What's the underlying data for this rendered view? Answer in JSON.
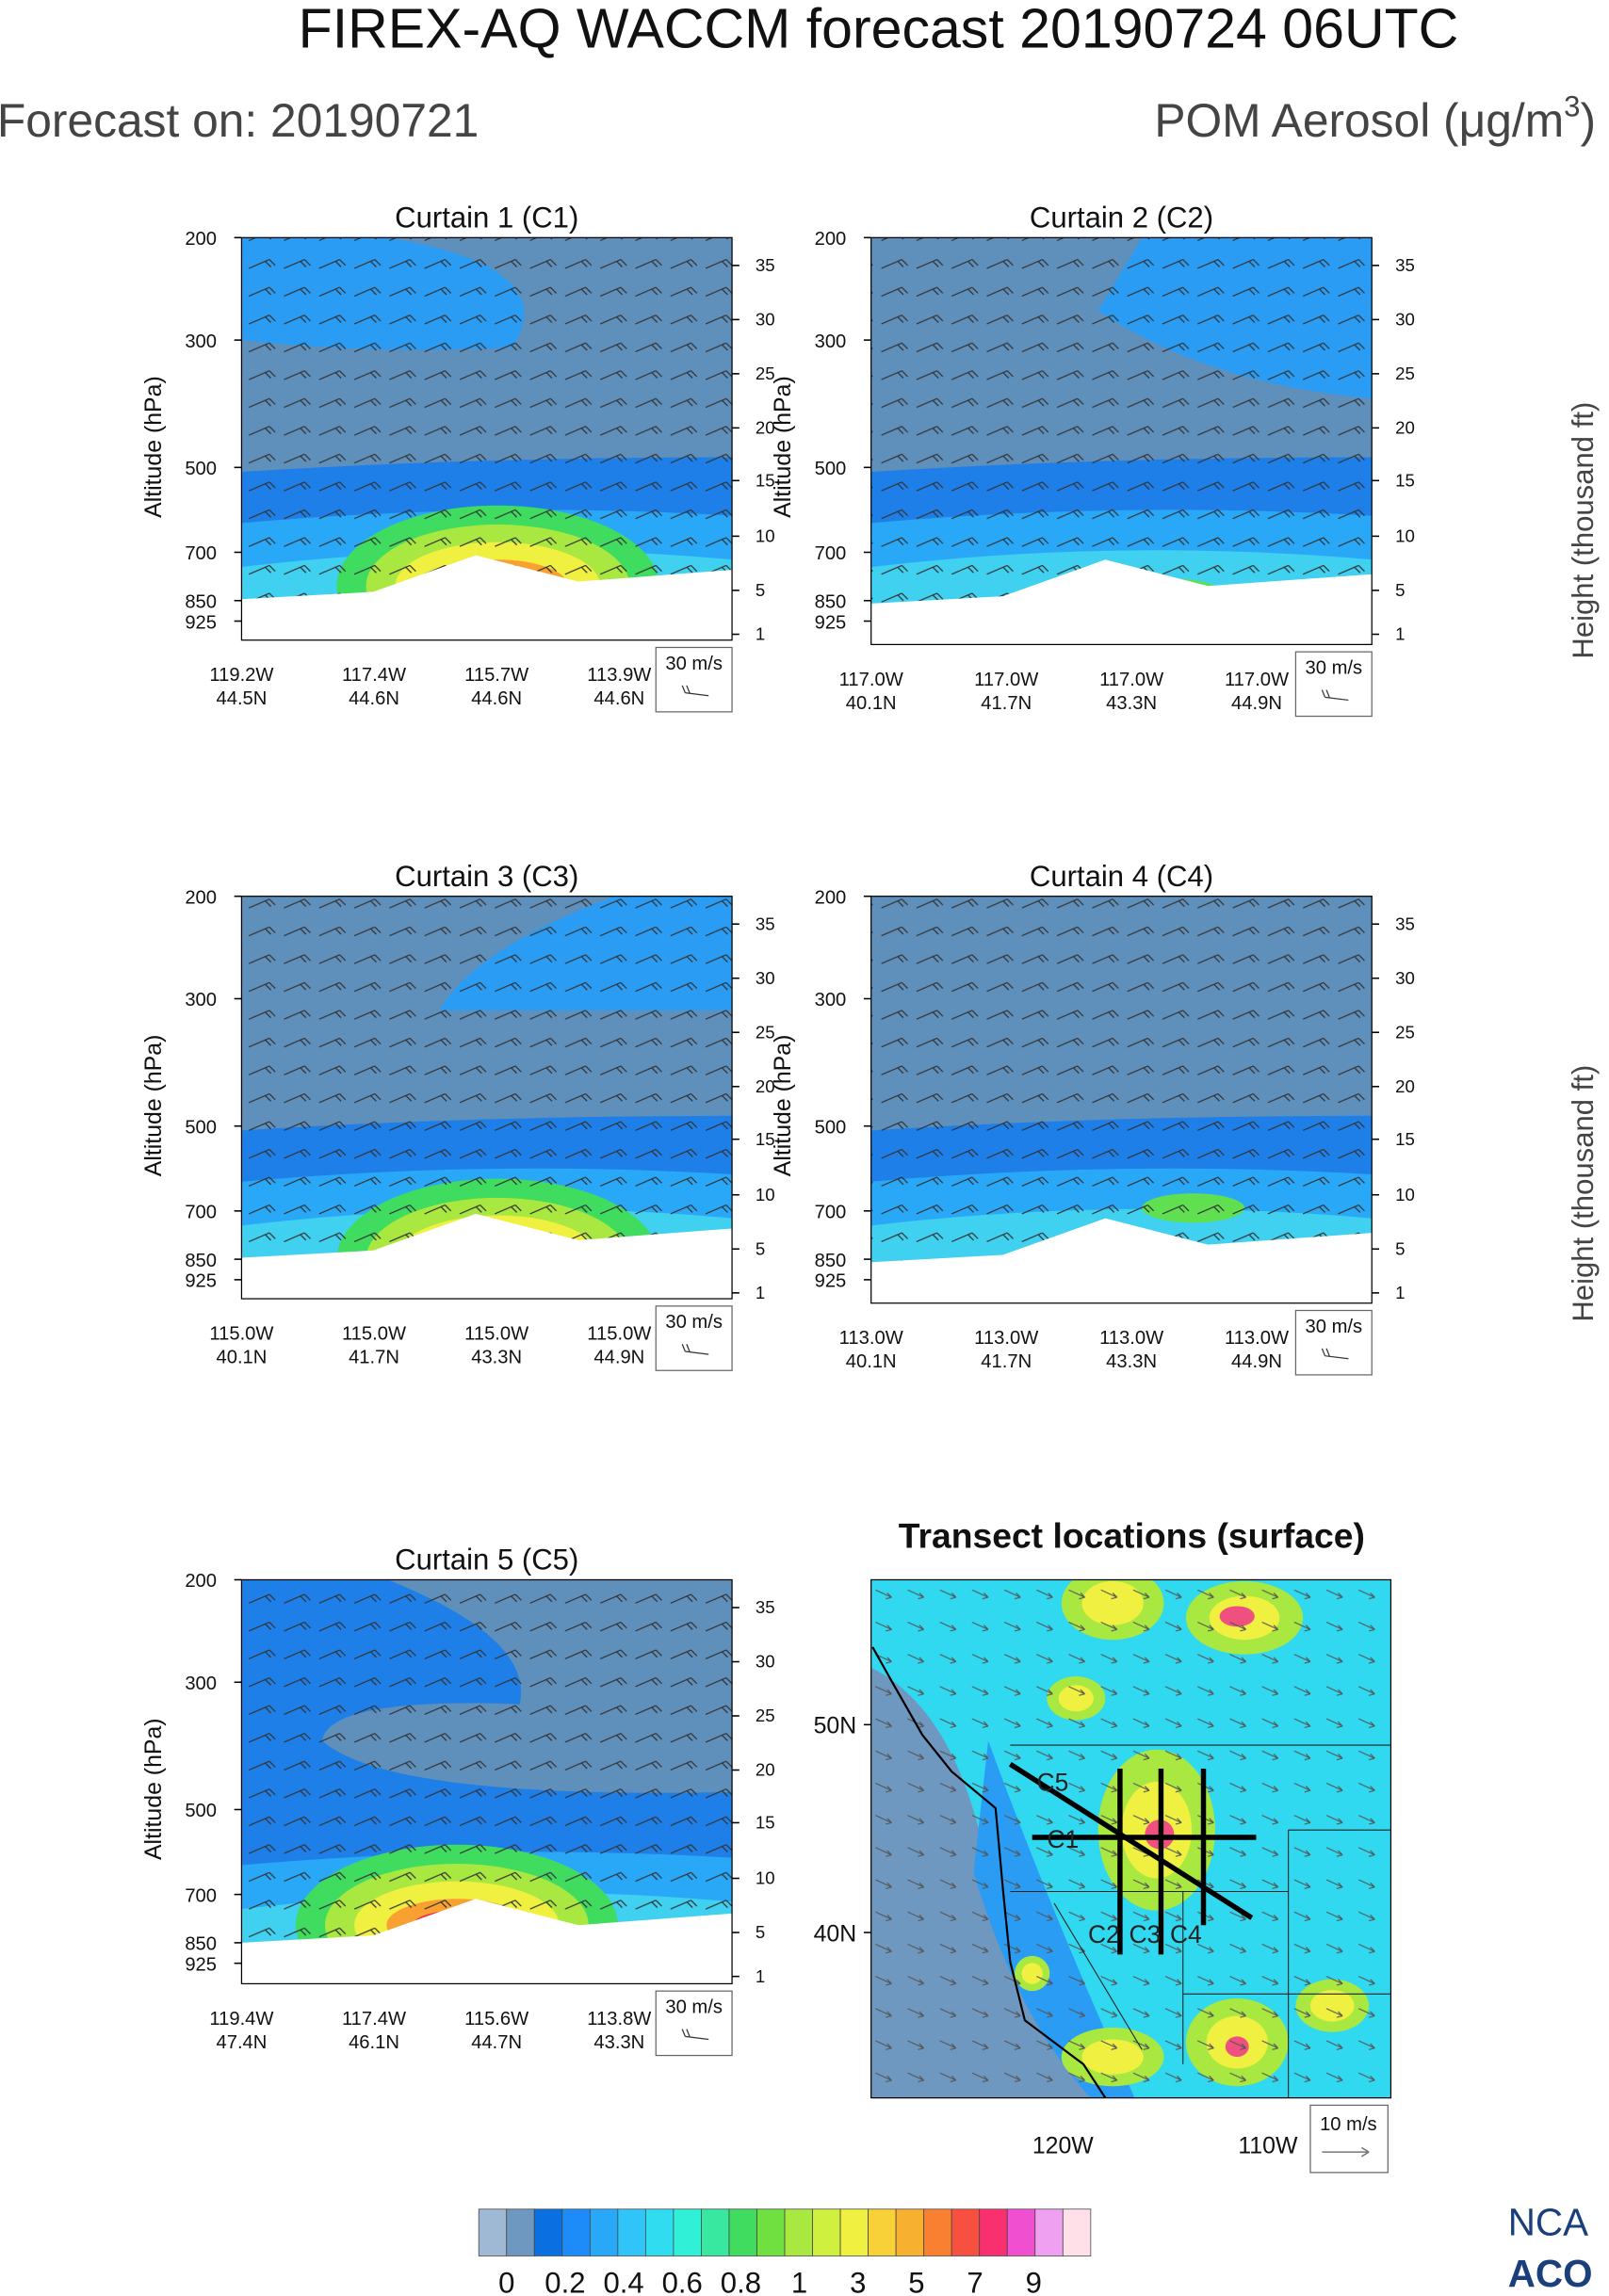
{
  "header": {
    "title": "FIREX-AQ WACCM forecast 20190724 06UTC",
    "forecast_on": "Forecast on: 20190721",
    "variable": "POM Aerosol (μg/m",
    "variable_sup": "3",
    "variable_end": ")"
  },
  "y_axis_label": "Altitude (hPa)",
  "right_axis_labels": [
    "Height (thousand ft)",
    "Height (thousand ft)"
  ],
  "panels": [
    {
      "title": "Curtain 1 (C1)",
      "yticks": [
        "200",
        "300",
        "500",
        "700",
        "850",
        "925"
      ],
      "right_ticks": [
        "35",
        "30",
        "25",
        "20",
        "15",
        "10",
        "5",
        "1"
      ],
      "wind_key": "30 m/s",
      "x_labels": [
        {
          "lon": "119.2W",
          "lat": "44.5N"
        },
        {
          "lon": "117.4W",
          "lat": "44.6N"
        },
        {
          "lon": "115.7W",
          "lat": "44.6N"
        },
        {
          "lon": "113.9W",
          "lat": "44.6N"
        }
      ]
    },
    {
      "title": "Curtain 2 (C2)",
      "yticks": [
        "200",
        "300",
        "500",
        "700",
        "850",
        "925"
      ],
      "right_ticks": [
        "35",
        "30",
        "25",
        "20",
        "15",
        "10",
        "5",
        "1"
      ],
      "wind_key": "30 m/s",
      "x_labels": [
        {
          "lon": "117.0W",
          "lat": "40.1N"
        },
        {
          "lon": "117.0W",
          "lat": "41.7N"
        },
        {
          "lon": "117.0W",
          "lat": "43.3N"
        },
        {
          "lon": "117.0W",
          "lat": "44.9N"
        }
      ]
    },
    {
      "title": "Curtain 3 (C3)",
      "yticks": [
        "200",
        "300",
        "500",
        "700",
        "850",
        "925"
      ],
      "right_ticks": [
        "35",
        "30",
        "25",
        "20",
        "15",
        "10",
        "5",
        "1"
      ],
      "wind_key": "30 m/s",
      "x_labels": [
        {
          "lon": "115.0W",
          "lat": "40.1N"
        },
        {
          "lon": "115.0W",
          "lat": "41.7N"
        },
        {
          "lon": "115.0W",
          "lat": "43.3N"
        },
        {
          "lon": "115.0W",
          "lat": "44.9N"
        }
      ]
    },
    {
      "title": "Curtain 4 (C4)",
      "yticks": [
        "200",
        "300",
        "500",
        "700",
        "850",
        "925"
      ],
      "right_ticks": [
        "35",
        "30",
        "25",
        "20",
        "15",
        "10",
        "5",
        "1"
      ],
      "wind_key": "30 m/s",
      "x_labels": [
        {
          "lon": "113.0W",
          "lat": "40.1N"
        },
        {
          "lon": "113.0W",
          "lat": "41.7N"
        },
        {
          "lon": "113.0W",
          "lat": "43.3N"
        },
        {
          "lon": "113.0W",
          "lat": "44.9N"
        }
      ]
    },
    {
      "title": "Curtain 5 (C5)",
      "yticks": [
        "200",
        "300",
        "500",
        "700",
        "850",
        "925"
      ],
      "right_ticks": [
        "35",
        "30",
        "25",
        "20",
        "15",
        "10",
        "5",
        "1"
      ],
      "wind_key": "30 m/s",
      "x_labels": [
        {
          "lon": "119.4W",
          "lat": "47.4N"
        },
        {
          "lon": "117.4W",
          "lat": "46.1N"
        },
        {
          "lon": "115.6W",
          "lat": "44.7N"
        },
        {
          "lon": "113.8W",
          "lat": "43.3N"
        }
      ]
    }
  ],
  "map": {
    "title": "Transect locations (surface)",
    "lat_labels": [
      "50N",
      "40N"
    ],
    "lon_labels": [
      "120W",
      "110W"
    ],
    "transects": [
      "C5",
      "C1",
      "C2",
      "C3",
      "C4"
    ],
    "wind_key": "10 m/s"
  },
  "colorbar": {
    "labels": [
      "0",
      "0.2",
      "0.4",
      "0.6",
      "0.8",
      "1",
      "3",
      "5",
      "7",
      "9"
    ]
  },
  "logo": [
    "NCA",
    "ACO"
  ]
}
